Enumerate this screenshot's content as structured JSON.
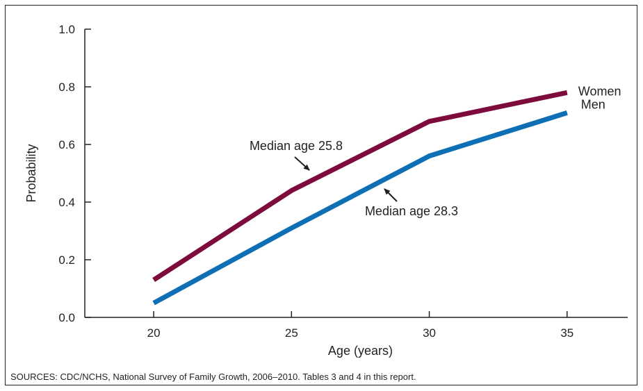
{
  "chart_data": {
    "type": "line",
    "xlabel": "Age (years)",
    "ylabel": "Probability",
    "xlim": [
      17.5,
      37.2
    ],
    "ylim": [
      0,
      1.0
    ],
    "x_ticks": [
      20,
      25,
      30,
      35
    ],
    "x_tick_labels": [
      "20",
      "25",
      "30",
      "35"
    ],
    "y_ticks": [
      0.0,
      0.2,
      0.4,
      0.6,
      0.8,
      1.0
    ],
    "y_tick_labels": [
      "0.0",
      "0.2",
      "0.4",
      "0.6",
      "0.8",
      "1.0"
    ],
    "grid": false,
    "series": [
      {
        "name": "Women",
        "color": "#7d0b3b",
        "x": [
          20,
          25,
          30,
          35
        ],
        "y": [
          0.13,
          0.44,
          0.68,
          0.78
        ]
      },
      {
        "name": "Men",
        "color": "#0e6fb5",
        "x": [
          20,
          25,
          30,
          35
        ],
        "y": [
          0.05,
          0.31,
          0.56,
          0.71
        ]
      }
    ],
    "annotations": [
      {
        "text": "Median age 25.8",
        "x": 25.8,
        "y": 0.5
      },
      {
        "text": "Median age 28.3",
        "x": 28.3,
        "y": 0.45
      }
    ]
  },
  "source": "SOURCES: CDC/NCHS, National Survey of Family Growth, 2006–2010. Tables 3 and 4 in this report."
}
